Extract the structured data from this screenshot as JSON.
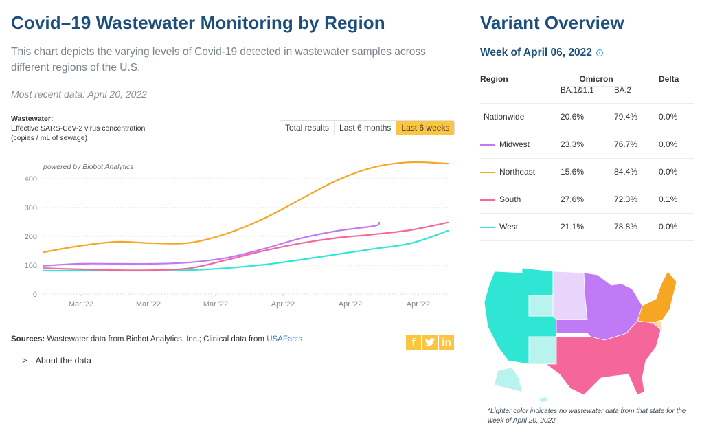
{
  "header": {
    "title": "Covid–19 Wastewater Monitoring by Region",
    "subtitle": "This chart depicts the varying levels of Covid-19 detected in wastewater samples across different regions of the U.S.",
    "most_recent": "Most recent data: April 20, 2022"
  },
  "chart_controls": {
    "ylabel_bold": "Wastewater:",
    "ylabel_line1": "Effective SARS-CoV-2 virus concentration",
    "ylabel_line2": "(copies / mL of sewage)",
    "ranges": [
      {
        "label": "Total results",
        "active": false
      },
      {
        "label": "Last 6 months",
        "active": false
      },
      {
        "label": "Last 6 weeks",
        "active": true
      }
    ],
    "powered_by": "powered by Biobot Analytics"
  },
  "chart_data": {
    "type": "line",
    "title": "Covid–19 Wastewater Monitoring by Region",
    "xlabel": "",
    "ylabel": "Effective SARS-CoV-2 virus concentration (copies / mL of sewage)",
    "ylim": [
      0,
      460
    ],
    "yticks": [
      0,
      100,
      200,
      300,
      400
    ],
    "xtick_labels": [
      "Mar '22",
      "Mar '22",
      "Mar '22",
      "Apr '22",
      "Apr '22",
      "Apr '22"
    ],
    "grid": true,
    "x": [
      0,
      1,
      2,
      3,
      4,
      5,
      6,
      7,
      8,
      9,
      10,
      11
    ],
    "series": [
      {
        "name": "Northeast",
        "color": "#f5a623",
        "values": [
          145,
          167,
          181,
          176,
          178,
          210,
          262,
          329,
          395,
          440,
          457,
          452
        ]
      },
      {
        "name": "Midwest",
        "color": "#c07af5",
        "values": [
          98,
          105,
          105,
          105,
          110,
          126,
          157,
          193,
          219,
          236,
          248,
          null
        ]
      },
      {
        "name": "South",
        "color": "#f5679b",
        "values": [
          90,
          86,
          83,
          83,
          90,
          119,
          150,
          176,
          195,
          207,
          222,
          248
        ]
      },
      {
        "name": "West",
        "color": "#2ee6d3",
        "values": [
          81,
          81,
          81,
          81,
          83,
          90,
          102,
          119,
          138,
          157,
          176,
          219
        ]
      }
    ]
  },
  "footer": {
    "sources_label": "Sources:",
    "sources_text": " Wastewater data from Biobot Analytics, Inc.; Clinical data from ",
    "sources_link": "USAFacts",
    "social": [
      {
        "name": "facebook",
        "glyph": "f"
      },
      {
        "name": "twitter",
        "glyph": "t"
      },
      {
        "name": "linkedin",
        "glyph": "in"
      }
    ],
    "about_chevron": ">",
    "about_label": "About the data"
  },
  "variant": {
    "title": "Variant Overview",
    "week": "Week of April 06, 2022",
    "info_glyph": "i",
    "headers": {
      "region": "Region",
      "omicron": "Omicron",
      "ba1": "BA.1&1.1",
      "ba2": "BA.2",
      "delta": "Delta"
    },
    "rows": [
      {
        "region": "Nationwide",
        "ba1": "20.6%",
        "ba2": "79.4%",
        "delta": "0.0%",
        "color": ""
      },
      {
        "region": "Midwest",
        "ba1": "23.3%",
        "ba2": "76.7%",
        "delta": "0.0%",
        "color": "#c07af5"
      },
      {
        "region": "Northeast",
        "ba1": "15.6%",
        "ba2": "84.4%",
        "delta": "0.0%",
        "color": "#f5a623"
      },
      {
        "region": "South",
        "ba1": "27.6%",
        "ba2": "72.3%",
        "delta": "0.1%",
        "color": "#f5679b"
      },
      {
        "region": "West",
        "ba1": "21.1%",
        "ba2": "78.8%",
        "delta": "0.0%",
        "color": "#2ee6d3"
      }
    ],
    "map_note": "*Lighter color indicates no wastewater data from that state for the week of April 20, 2022",
    "map_colors": {
      "west": "#2ee6d3",
      "west_light": "#b8f3ee",
      "midwest": "#c07af5",
      "midwest_light": "#e9d4fb",
      "northeast": "#f5a623",
      "northeast_light": "#fbdca6",
      "south": "#f5679b"
    }
  }
}
